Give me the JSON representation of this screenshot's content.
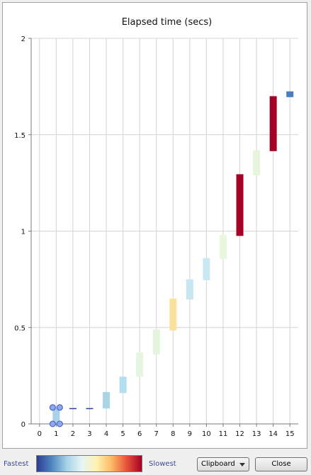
{
  "chart_data": {
    "type": "bar",
    "title": "Elapsed time (secs)",
    "xlabel": "",
    "ylabel": "",
    "xlim": [
      -0.5,
      15.5
    ],
    "ylim": [
      0,
      2
    ],
    "x_ticks": [
      0,
      1,
      2,
      3,
      4,
      5,
      6,
      7,
      8,
      9,
      10,
      11,
      12,
      13,
      14,
      15
    ],
    "y_ticks": [
      0,
      0.5,
      1,
      1.5,
      2
    ],
    "y_tick_labels": [
      "0",
      "0.5",
      "1",
      "1.5",
      "2"
    ],
    "grid": true,
    "bars": [
      {
        "x": 1,
        "low": 0.0,
        "high": 0.085,
        "color": "#a9d1ea",
        "selected": true
      },
      {
        "x": 2,
        "low": 0.078,
        "high": 0.082,
        "color": "#2e3f94"
      },
      {
        "x": 3,
        "low": 0.078,
        "high": 0.082,
        "color": "#2e3f94"
      },
      {
        "x": 4,
        "low": 0.08,
        "high": 0.165,
        "color": "#a9d5e6"
      },
      {
        "x": 5,
        "low": 0.16,
        "high": 0.245,
        "color": "#b3def0"
      },
      {
        "x": 6,
        "low": 0.245,
        "high": 0.37,
        "color": "#e6f5e0"
      },
      {
        "x": 7,
        "low": 0.36,
        "high": 0.49,
        "color": "#e4f5dc"
      },
      {
        "x": 8,
        "low": 0.485,
        "high": 0.65,
        "color": "#fbe19c"
      },
      {
        "x": 9,
        "low": 0.645,
        "high": 0.75,
        "color": "#c7e6f2"
      },
      {
        "x": 10,
        "low": 0.745,
        "high": 0.86,
        "color": "#c9e8f4"
      },
      {
        "x": 11,
        "low": 0.855,
        "high": 0.98,
        "color": "#ebf6df"
      },
      {
        "x": 12,
        "low": 0.975,
        "high": 1.295,
        "color": "#a50026"
      },
      {
        "x": 13,
        "low": 1.29,
        "high": 1.42,
        "color": "#e7f5dd"
      },
      {
        "x": 14,
        "low": 1.415,
        "high": 1.7,
        "color": "#a50026"
      },
      {
        "x": 15,
        "low": 1.695,
        "high": 1.725,
        "color": "#4a7fbf"
      }
    ]
  },
  "legend": {
    "fastest_label": "Fastest",
    "slowest_label": "Slowest",
    "gradient_colors": [
      "#2c3d92",
      "#4f86bf",
      "#a6d3e8",
      "#e6f5f5",
      "#fff3b0",
      "#fdb866",
      "#e8523a",
      "#a50026"
    ]
  },
  "buttons": {
    "clipboard_label": "Clipboard",
    "close_label": "Close"
  },
  "colors": {
    "axis": "#7a7a7a",
    "grid": "#d4d4d4",
    "selection_handle": "#8ea8e8",
    "selection_handle_border": "#3a55c8"
  }
}
